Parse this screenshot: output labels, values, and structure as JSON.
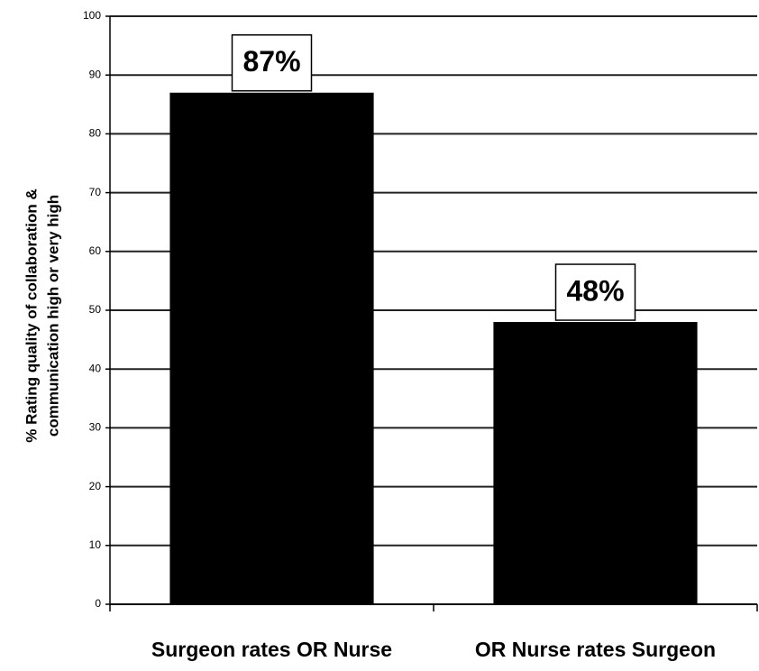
{
  "chart_data": {
    "type": "bar",
    "ylabel": [
      "% Rating quality of collaboration &",
      "communication high or very high"
    ],
    "categories": [
      "Surgeon rates OR Nurse",
      "OR Nurse rates Surgeon"
    ],
    "values": [
      87,
      48
    ],
    "value_labels": [
      "87%",
      "48%"
    ],
    "color": "#000000",
    "ylim": [
      0,
      100
    ],
    "yticks": [
      0,
      10,
      20,
      30,
      40,
      50,
      60,
      70,
      80,
      90,
      100
    ],
    "grid": true
  }
}
